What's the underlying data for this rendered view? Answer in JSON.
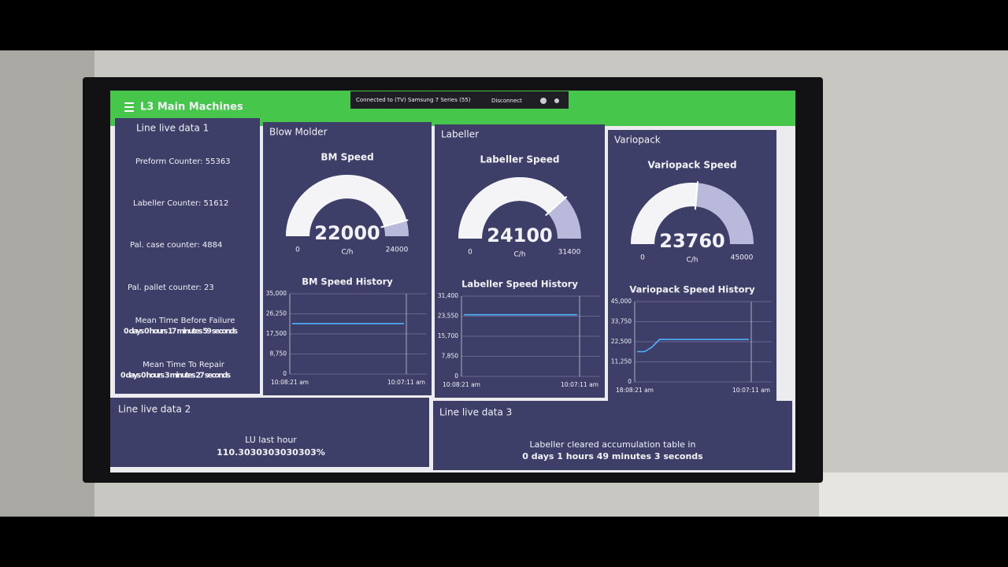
{
  "header": {
    "title": "L3 Main Machines"
  },
  "cast_bar": {
    "text": "Connected to (TV) Samsung 7 Series (55)",
    "action": "Disconnect"
  },
  "line_live_data_1": {
    "title": "Line live data 1",
    "counters": [
      "Preform Counter: 55363",
      "Labeller Counter: 51612",
      "Pal. case counter: 4884",
      "Pal. pallet counter: 23"
    ],
    "mtbf": {
      "label": "Mean Time Before Failure",
      "value": "0 days 0 hours 17 minutes 59 seconds"
    },
    "mttr": {
      "label": "Mean Time To Repair",
      "value": "0 days 0 hours 3 minutes 27 seconds"
    }
  },
  "machines": [
    {
      "title": "Blow Molder",
      "gauge": {
        "title": "BM Speed",
        "value": 22000,
        "min": 0,
        "max": 24000,
        "unit": "C/h"
      },
      "history": {
        "type": "line",
        "title": "BM Speed History",
        "xtick_labels": [
          "10:08:21 am",
          "10:07:11 am"
        ],
        "series": [
          {
            "color": "#4fb3ff",
            "values": [
              22000,
              22000
            ]
          }
        ],
        "ylim": [
          0,
          35000
        ],
        "yticks": [
          0,
          {
            "value": 8750,
            "label": "8,750"
          },
          {
            "value": 17500,
            "label": "17,500"
          },
          {
            "value": 26250,
            "label": "26,250"
          },
          {
            "value": 35000,
            "label": "35,000"
          }
        ]
      }
    },
    {
      "title": "Labeller",
      "gauge": {
        "title": "Labeller Speed",
        "value": 24100,
        "min": 0,
        "max": 31400,
        "unit": "C/h"
      },
      "history": {
        "type": "line",
        "title": "Labeller Speed History",
        "xtick_labels": [
          "10:08:21 am",
          "10:07:11 am"
        ],
        "series": [
          {
            "color": "#4fb3ff",
            "values": [
              24100,
              24100
            ]
          }
        ],
        "ylim": [
          0,
          31400
        ],
        "yticks": [
          0,
          {
            "value": 7850,
            "label": "7,850"
          },
          {
            "value": 15700,
            "label": "15,700"
          },
          {
            "value": 23550,
            "label": "23,550"
          },
          {
            "value": 31400,
            "label": "31,400"
          }
        ]
      }
    },
    {
      "title": "Variopack",
      "gauge": {
        "title": "Variopack Speed",
        "value": 23760,
        "min": 0,
        "max": 45000,
        "unit": "C/h"
      },
      "history": {
        "type": "line",
        "title": "Variopack Speed History",
        "xtick_labels": [
          "18:08:21 am",
          "10:07:11 am"
        ],
        "series": [
          {
            "color": "#4fb3ff",
            "values": [
              17000,
              17000,
              19500,
              23760,
              23760,
              23760,
              23760,
              23760,
              23760,
              23760,
              23760,
              23760,
              23760,
              23760,
              23760,
              23760
            ]
          }
        ],
        "ylim": [
          0,
          45000
        ],
        "yticks": [
          0,
          {
            "value": 11250,
            "label": "11,250"
          },
          {
            "value": 22500,
            "label": "22,500"
          },
          {
            "value": 33750,
            "label": "33,750"
          },
          {
            "value": 45000,
            "label": "45,000"
          }
        ]
      }
    }
  ],
  "line_live_data_2": {
    "title": "Line live data 2",
    "label": "LU last hour",
    "value": "110.3030303030303%"
  },
  "line_live_data_3": {
    "title": "Line live data 3",
    "label": "Labeller cleared accumulation table in",
    "value": "0 days 1 hours 49 minutes 3 seconds"
  }
}
